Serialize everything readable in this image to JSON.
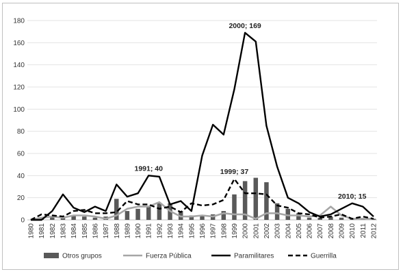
{
  "chart_data": {
    "type": "bar+line",
    "categories": [
      "1980",
      "1981",
      "1982",
      "1983",
      "1984",
      "1985",
      "1986",
      "1987",
      "1988",
      "1989",
      "1990",
      "1991",
      "1992",
      "1993",
      "1994",
      "1995",
      "1996",
      "1997",
      "1998",
      "1999",
      "2000",
      "2001",
      "2002",
      "2003",
      "2004",
      "2005",
      "2006",
      "2007",
      "2008",
      "2009",
      "2010",
      "2011",
      "2012"
    ],
    "ylim": [
      0,
      180
    ],
    "yticks": [
      0,
      20,
      40,
      60,
      80,
      100,
      120,
      140,
      160,
      180
    ],
    "grid": true,
    "legend_position": "bottom",
    "series": [
      {
        "name": "Otros grupos",
        "kind": "bar",
        "color": "#595959",
        "values": [
          0,
          2,
          3,
          2,
          4,
          3,
          2,
          3,
          19,
          8,
          10,
          12,
          15,
          15,
          8,
          4,
          4,
          5,
          8,
          23,
          35,
          38,
          34,
          15,
          10,
          6,
          2,
          2,
          3,
          2,
          1,
          1,
          1
        ]
      },
      {
        "name": "Fuerza Pública",
        "kind": "line",
        "style": "solid",
        "color": "#a6a6a6",
        "values": [
          0,
          2,
          3,
          2,
          4,
          4,
          3,
          1,
          4,
          10,
          12,
          12,
          16,
          8,
          3,
          3,
          4,
          3,
          6,
          5,
          5,
          1,
          6,
          6,
          4,
          4,
          3,
          4,
          12,
          4,
          1,
          1,
          1
        ]
      },
      {
        "name": "Paramilitares",
        "kind": "line",
        "style": "solid",
        "color": "#000000",
        "values": [
          0,
          0,
          8,
          23,
          11,
          7,
          12,
          8,
          32,
          21,
          24,
          40,
          39,
          14,
          17,
          8,
          58,
          86,
          77,
          118,
          169,
          161,
          85,
          48,
          20,
          15,
          7,
          3,
          5,
          10,
          15,
          12,
          3
        ]
      },
      {
        "name": "Guerrilla",
        "kind": "line",
        "style": "dashed",
        "color": "#000000",
        "values": [
          0,
          5,
          4,
          3,
          8,
          9,
          6,
          6,
          7,
          17,
          14,
          14,
          10,
          12,
          7,
          15,
          13,
          14,
          18,
          37,
          24,
          24,
          23,
          13,
          11,
          6,
          5,
          2,
          3,
          5,
          1,
          3,
          1
        ]
      }
    ],
    "annotations": [
      {
        "category": "1991",
        "value": 40,
        "text": "1991; 40"
      },
      {
        "category": "1999",
        "value": 37,
        "text": "1999; 37"
      },
      {
        "category": "2000",
        "value": 169,
        "text": "2000; 169"
      },
      {
        "category": "2010",
        "value": 15,
        "text": "2010; 15"
      }
    ]
  }
}
